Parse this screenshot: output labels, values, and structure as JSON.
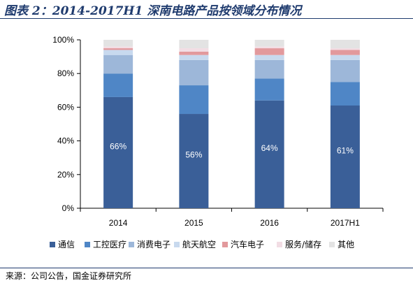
{
  "title": "图表 2：2014-2017H1 深南电路产品按领域分布情况",
  "source": "来源：公司公告，国金证券研究所",
  "chart_data": {
    "type": "bar",
    "stacked": true,
    "categories": [
      "2014",
      "2015",
      "2016",
      "2017H1"
    ],
    "y_ticks": [
      "0%",
      "20%",
      "40%",
      "60%",
      "80%",
      "100%"
    ],
    "ylim": [
      0,
      100
    ],
    "grid": false,
    "legend_position": "bottom",
    "series": [
      {
        "name": "通信",
        "color": "#3a5f98",
        "values": [
          66,
          56,
          64,
          61
        ],
        "labels": [
          "66%",
          "56%",
          "64%",
          "61%"
        ]
      },
      {
        "name": "工控医疗",
        "color": "#4f86c6",
        "values": [
          14,
          17,
          13,
          14
        ]
      },
      {
        "name": "消费电子",
        "color": "#9db7d9",
        "values": [
          11,
          15,
          11,
          13
        ]
      },
      {
        "name": "航天航空",
        "color": "#c8d9ee",
        "values": [
          3,
          3,
          3,
          3
        ]
      },
      {
        "name": "汽车电子",
        "color": "#e2999c",
        "values": [
          1,
          2,
          4,
          3
        ]
      },
      {
        "name": "服务/储存",
        "color": "#f2dde4",
        "values": [
          1,
          2,
          1,
          1
        ]
      },
      {
        "name": "其他",
        "color": "#e3e3e3",
        "values": [
          4,
          5,
          4,
          5
        ]
      }
    ]
  }
}
